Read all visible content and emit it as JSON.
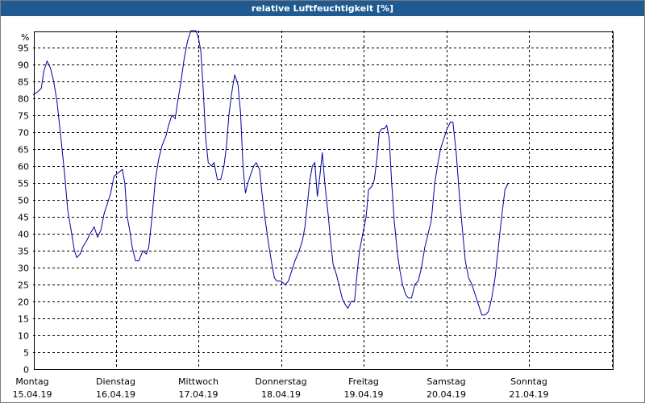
{
  "window": {
    "title": "relative Luftfeuchtigkeit [%]"
  },
  "chart_data": {
    "type": "line",
    "title": "relative Luftfeuchtigkeit [%]",
    "ylabel": "%",
    "ylim": [
      0,
      100
    ],
    "yticks": [
      0,
      5,
      10,
      15,
      20,
      25,
      30,
      35,
      40,
      45,
      50,
      55,
      60,
      65,
      70,
      75,
      80,
      85,
      90,
      95
    ],
    "grid": true,
    "color": "#0000a0",
    "x_labels": [
      {
        "day": "Montag",
        "date": "15.04.19"
      },
      {
        "day": "Dienstag",
        "date": "16.04.19"
      },
      {
        "day": "Mittwoch",
        "date": "17.04.19"
      },
      {
        "day": "Donnerstag",
        "date": "18.04.19"
      },
      {
        "day": "Freitag",
        "date": "19.04.19"
      },
      {
        "day": "Samstag",
        "date": "20.04.19"
      },
      {
        "day": "Sonntag",
        "date": "21.04.19"
      }
    ],
    "series": [
      {
        "points": [
          [
            0.0,
            81
          ],
          [
            0.06,
            82
          ],
          [
            0.1,
            83
          ],
          [
            0.13,
            88
          ],
          [
            0.17,
            91
          ],
          [
            0.21,
            89
          ],
          [
            0.25,
            85
          ],
          [
            0.29,
            79
          ],
          [
            0.33,
            70
          ],
          [
            0.38,
            58
          ],
          [
            0.42,
            47
          ],
          [
            0.46,
            41
          ],
          [
            0.5,
            35
          ],
          [
            0.53,
            33
          ],
          [
            0.57,
            34
          ],
          [
            0.6,
            36
          ],
          [
            0.65,
            38
          ],
          [
            0.69,
            40
          ],
          [
            0.74,
            42
          ],
          [
            0.78,
            39
          ],
          [
            0.82,
            41
          ],
          [
            0.86,
            46
          ],
          [
            0.9,
            49
          ],
          [
            0.94,
            52
          ],
          [
            0.98,
            57
          ],
          [
            1.03,
            58
          ],
          [
            1.08,
            59
          ],
          [
            1.11,
            55
          ],
          [
            1.14,
            45
          ],
          [
            1.17,
            41
          ],
          [
            1.2,
            36
          ],
          [
            1.24,
            32
          ],
          [
            1.28,
            32
          ],
          [
            1.33,
            35
          ],
          [
            1.37,
            34
          ],
          [
            1.4,
            36
          ],
          [
            1.44,
            45
          ],
          [
            1.48,
            56
          ],
          [
            1.52,
            62
          ],
          [
            1.56,
            66
          ],
          [
            1.61,
            69
          ],
          [
            1.64,
            72
          ],
          [
            1.68,
            75
          ],
          [
            1.72,
            74
          ],
          [
            1.75,
            79
          ],
          [
            1.79,
            85
          ],
          [
            1.83,
            92
          ],
          [
            1.87,
            97
          ],
          [
            1.91,
            100
          ],
          [
            1.94,
            100
          ],
          [
            1.97,
            100
          ],
          [
            2.0,
            98
          ],
          [
            2.03,
            94
          ],
          [
            2.06,
            82
          ],
          [
            2.09,
            68
          ],
          [
            2.12,
            61
          ],
          [
            2.16,
            60
          ],
          [
            2.19,
            61
          ],
          [
            2.23,
            56
          ],
          [
            2.27,
            56
          ],
          [
            2.31,
            60
          ],
          [
            2.34,
            66
          ],
          [
            2.37,
            75
          ],
          [
            2.4,
            81
          ],
          [
            2.44,
            87
          ],
          [
            2.48,
            84
          ],
          [
            2.51,
            76
          ],
          [
            2.54,
            60
          ],
          [
            2.57,
            52
          ],
          [
            2.6,
            55
          ],
          [
            2.64,
            58
          ],
          [
            2.67,
            60
          ],
          [
            2.7,
            61
          ],
          [
            2.74,
            59
          ],
          [
            2.77,
            52
          ],
          [
            2.81,
            44
          ],
          [
            2.85,
            37
          ],
          [
            2.89,
            31
          ],
          [
            2.92,
            27
          ],
          [
            2.95,
            26
          ],
          [
            3.0,
            26
          ],
          [
            3.05,
            25
          ],
          [
            3.09,
            26
          ],
          [
            3.13,
            29
          ],
          [
            3.17,
            32
          ],
          [
            3.22,
            35
          ],
          [
            3.26,
            38
          ],
          [
            3.29,
            42
          ],
          [
            3.32,
            49
          ],
          [
            3.35,
            56
          ],
          [
            3.38,
            60
          ],
          [
            3.41,
            61
          ],
          [
            3.44,
            51
          ],
          [
            3.47,
            57
          ],
          [
            3.5,
            64
          ],
          [
            3.53,
            55
          ],
          [
            3.57,
            46
          ],
          [
            3.6,
            38
          ],
          [
            3.63,
            31
          ],
          [
            3.67,
            28
          ],
          [
            3.7,
            25
          ],
          [
            3.74,
            21
          ],
          [
            3.78,
            19
          ],
          [
            3.81,
            18
          ],
          [
            3.85,
            20
          ],
          [
            3.89,
            20
          ],
          [
            3.92,
            28
          ],
          [
            3.95,
            35
          ],
          [
            3.99,
            40
          ],
          [
            4.03,
            45
          ],
          [
            4.06,
            53
          ],
          [
            4.1,
            54
          ],
          [
            4.13,
            56
          ],
          [
            4.16,
            62
          ],
          [
            4.19,
            70
          ],
          [
            4.22,
            71
          ],
          [
            4.25,
            71
          ],
          [
            4.28,
            72
          ],
          [
            4.31,
            68
          ],
          [
            4.34,
            55
          ],
          [
            4.37,
            44
          ],
          [
            4.41,
            34
          ],
          [
            4.44,
            29
          ],
          [
            4.47,
            25
          ],
          [
            4.51,
            22
          ],
          [
            4.54,
            21
          ],
          [
            4.58,
            21
          ],
          [
            4.62,
            25
          ],
          [
            4.66,
            26
          ],
          [
            4.7,
            30
          ],
          [
            4.74,
            36
          ],
          [
            4.78,
            40
          ],
          [
            4.82,
            44
          ],
          [
            4.86,
            55
          ],
          [
            4.9,
            61
          ],
          [
            4.93,
            65
          ],
          [
            4.97,
            68
          ],
          [
            5.01,
            71
          ],
          [
            5.05,
            73
          ],
          [
            5.08,
            73
          ],
          [
            5.12,
            64
          ],
          [
            5.16,
            51
          ],
          [
            5.2,
            40
          ],
          [
            5.23,
            32
          ],
          [
            5.27,
            27
          ],
          [
            5.31,
            25
          ],
          [
            5.35,
            22
          ],
          [
            5.39,
            19
          ],
          [
            5.43,
            16
          ],
          [
            5.47,
            16
          ],
          [
            5.51,
            17
          ],
          [
            5.55,
            21
          ],
          [
            5.59,
            27
          ],
          [
            5.63,
            36
          ],
          [
            5.67,
            45
          ],
          [
            5.71,
            53
          ],
          [
            5.75,
            55
          ]
        ]
      }
    ]
  }
}
